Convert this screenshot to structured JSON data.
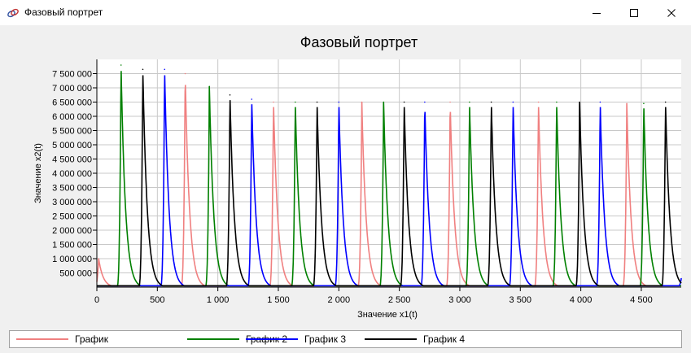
{
  "window": {
    "title": "Фазовый портрет",
    "icon": "app-chart-icon",
    "controls": [
      "minimize-icon",
      "maximize-icon",
      "close-icon"
    ]
  },
  "chart_data": {
    "type": "line",
    "title": "Фазовый портрет",
    "xlabel": "Значение x1(t)",
    "ylabel": "Значение x2(t)",
    "xlim": [
      0,
      4830
    ],
    "ylim": [
      0,
      8000000
    ],
    "x_ticks": [
      0,
      500,
      1000,
      1500,
      2000,
      2500,
      3000,
      3500,
      4000,
      4500
    ],
    "x_tick_labels": [
      "0",
      "500",
      "1 000",
      "1 500",
      "2 000",
      "2 500",
      "3 000",
      "3 500",
      "4 000",
      "4 500"
    ],
    "y_ticks": [
      500000,
      1000000,
      1500000,
      2000000,
      2500000,
      3000000,
      3500000,
      4000000,
      4500000,
      5000000,
      5500000,
      6000000,
      6500000,
      7000000,
      7500000
    ],
    "y_tick_labels": [
      "500 000",
      "1 000 000",
      "1 500 000",
      "2 000 000",
      "2 500 000",
      "3 000 000",
      "3 500 000",
      "4 000 000",
      "4 500 000",
      "5 000 000",
      "5 500 000",
      "6 000 000",
      "6 500 000",
      "7 000 000",
      "7 500 000"
    ],
    "grid": true,
    "legend_position": "bottom",
    "peak_shape": {
      "rise_width": 35,
      "decay_width": 220,
      "baseline": 50000
    },
    "series": [
      {
        "name": "График",
        "color": "#f08080",
        "peaks": [
          [
            15,
            1000000
          ],
          [
            730,
            7500000
          ],
          [
            1460,
            6500000
          ],
          [
            2190,
            6500000
          ],
          [
            2920,
            6500000
          ],
          [
            3650,
            6500000
          ],
          [
            4380,
            6450000
          ]
        ]
      },
      {
        "name": "График 2",
        "color": "#008000",
        "peaks": [
          [
            200,
            7800000
          ],
          [
            930,
            7050000
          ],
          [
            1640,
            6500000
          ],
          [
            2370,
            6500000
          ],
          [
            3080,
            6500000
          ],
          [
            3800,
            6500000
          ],
          [
            4520,
            6450000
          ]
        ]
      },
      {
        "name": "График 3",
        "color": "#0000ff",
        "peaks": [
          [
            560,
            7650000
          ],
          [
            1280,
            6600000
          ],
          [
            2000,
            6500000
          ],
          [
            2710,
            6500000
          ],
          [
            3440,
            6500000
          ],
          [
            4160,
            6500000
          ],
          [
            4830,
            300000
          ]
        ]
      },
      {
        "name": "График 4",
        "color": "#000000",
        "peaks": [
          [
            380,
            7650000
          ],
          [
            1100,
            6750000
          ],
          [
            1820,
            6500000
          ],
          [
            2540,
            6500000
          ],
          [
            3260,
            6500000
          ],
          [
            3990,
            6500000
          ],
          [
            4700,
            6500000
          ]
        ]
      }
    ]
  }
}
